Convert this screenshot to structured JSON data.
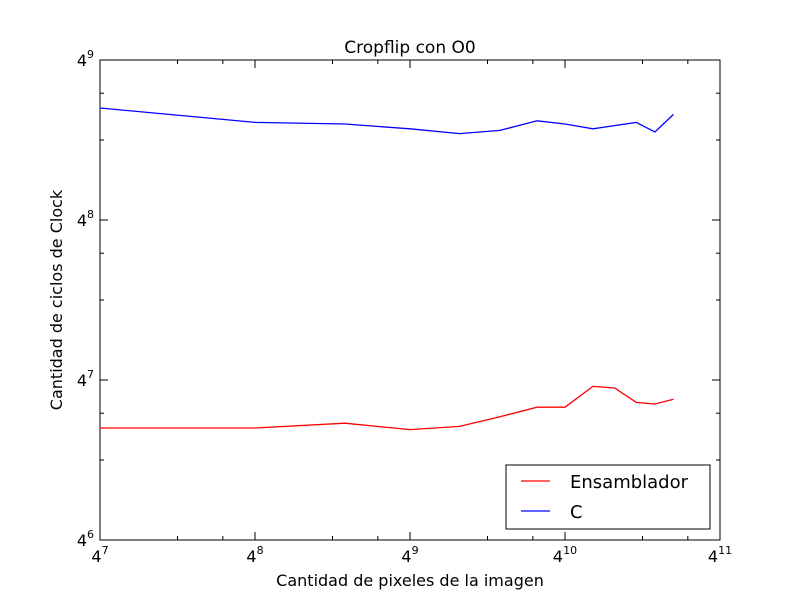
{
  "chart_data": {
    "type": "line",
    "title": "Cropflip con O0",
    "xlabel": "Cantidad de pixeles de la imagen",
    "ylabel": "Cantidad de ciclos de Clock",
    "xscale": "log4",
    "yscale": "log4",
    "xlim_exponent": [
      7,
      11
    ],
    "ylim_exponent": [
      6,
      9
    ],
    "x_ticks": [
      {
        "base": "4",
        "exp": "7"
      },
      {
        "base": "4",
        "exp": "8"
      },
      {
        "base": "4",
        "exp": "9"
      },
      {
        "base": "4",
        "exp": "10"
      },
      {
        "base": "4",
        "exp": "11"
      }
    ],
    "y_ticks": [
      {
        "base": "4",
        "exp": "6"
      },
      {
        "base": "4",
        "exp": "7"
      },
      {
        "base": "4",
        "exp": "8"
      },
      {
        "base": "4",
        "exp": "9"
      }
    ],
    "grid": false,
    "legend_position": "lower-right",
    "series": [
      {
        "name": "Ensamblador",
        "color": "#ff0000",
        "x_exp": [
          7.0,
          8.0,
          8.58,
          9.0,
          9.32,
          9.58,
          9.82,
          10.0,
          10.18,
          10.32,
          10.46,
          10.58,
          10.7
        ],
        "y_exp": [
          6.7,
          6.7,
          6.73,
          6.69,
          6.71,
          6.77,
          6.83,
          6.83,
          6.96,
          6.95,
          6.86,
          6.85,
          6.88
        ]
      },
      {
        "name": "C",
        "color": "#0000ff",
        "x_exp": [
          7.0,
          8.0,
          8.58,
          9.0,
          9.32,
          9.58,
          9.82,
          10.0,
          10.18,
          10.32,
          10.46,
          10.58,
          10.7
        ],
        "y_exp": [
          8.7,
          8.61,
          8.6,
          8.57,
          8.54,
          8.56,
          8.62,
          8.6,
          8.57,
          8.59,
          8.61,
          8.55,
          8.66
        ]
      }
    ]
  }
}
